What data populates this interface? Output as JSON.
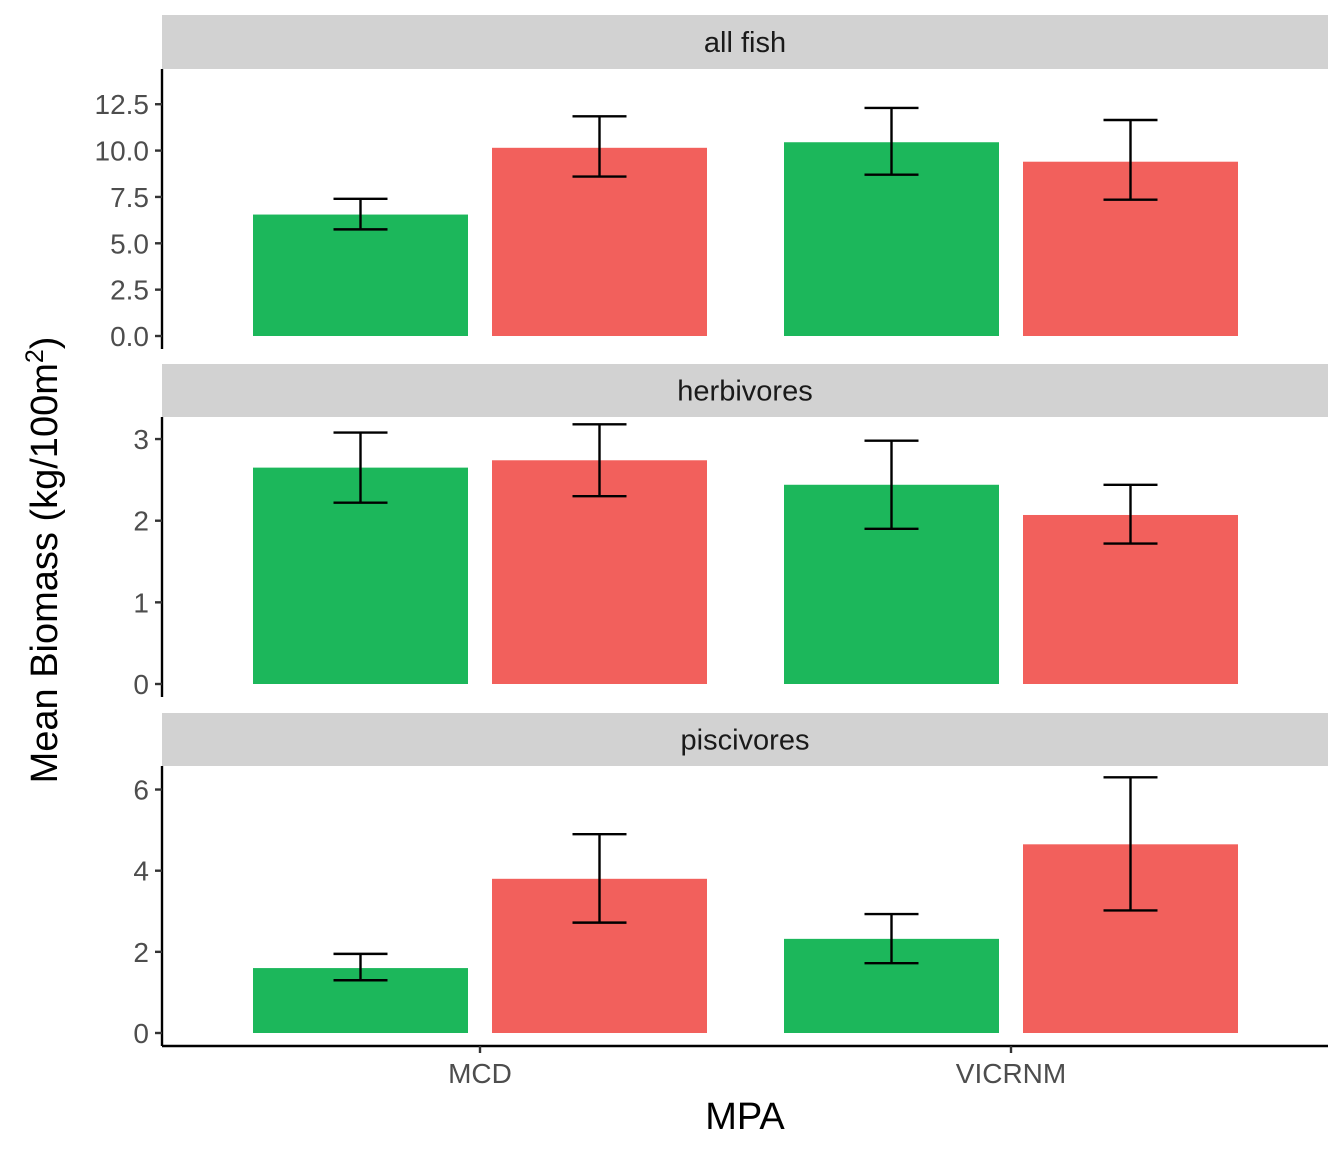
{
  "chart_data": {
    "type": "bar",
    "xlabel": "MPA",
    "ylabel": {
      "main": "Mean Biomass (kg/100m",
      "superscript": "2",
      "close": ")"
    },
    "categories": [
      "MCD",
      "VICRNM"
    ],
    "grid": false,
    "legend": "none",
    "colors": {
      "green": "#1cb75b",
      "red": "#f2605c",
      "strip_background": "#d2d2d2",
      "axis": "#000000",
      "tick_text": "#4d4d4d"
    },
    "panels": [
      {
        "title": "all fish",
        "ylim": [
          0,
          14.4
        ],
        "yticks": [
          "0.0",
          "2.5",
          "5.0",
          "7.5",
          "10.0",
          "12.5"
        ],
        "ytick_values": [
          0,
          2.5,
          5,
          7.5,
          10,
          12.5
        ],
        "groups": [
          {
            "category": "MCD",
            "bars": [
              {
                "color": "green",
                "value": 6.55,
                "lower": 5.75,
                "upper": 7.4
              },
              {
                "color": "red",
                "value": 10.15,
                "lower": 8.6,
                "upper": 11.85
              }
            ]
          },
          {
            "category": "VICRNM",
            "bars": [
              {
                "color": "green",
                "value": 10.45,
                "lower": 8.7,
                "upper": 12.3
              },
              {
                "color": "red",
                "value": 9.4,
                "lower": 7.35,
                "upper": 11.65
              }
            ]
          }
        ]
      },
      {
        "title": "herbivores",
        "ylim": [
          0,
          3.27
        ],
        "yticks": [
          "0",
          "1",
          "2",
          "3"
        ],
        "ytick_values": [
          0,
          1,
          2,
          3
        ],
        "groups": [
          {
            "category": "MCD",
            "bars": [
              {
                "color": "green",
                "value": 2.65,
                "lower": 2.22,
                "upper": 3.08
              },
              {
                "color": "red",
                "value": 2.74,
                "lower": 2.3,
                "upper": 3.18
              }
            ]
          },
          {
            "category": "VICRNM",
            "bars": [
              {
                "color": "green",
                "value": 2.44,
                "lower": 1.9,
                "upper": 2.98
              },
              {
                "color": "red",
                "value": 2.07,
                "lower": 1.72,
                "upper": 2.44
              }
            ]
          }
        ]
      },
      {
        "title": "piscivores",
        "ylim": [
          0,
          6.58
        ],
        "yticks": [
          "0",
          "2",
          "4",
          "6"
        ],
        "ytick_values": [
          0,
          2,
          4,
          6
        ],
        "groups": [
          {
            "category": "MCD",
            "bars": [
              {
                "color": "green",
                "value": 1.6,
                "lower": 1.3,
                "upper": 1.95
              },
              {
                "color": "red",
                "value": 3.8,
                "lower": 2.72,
                "upper": 4.9
              }
            ]
          },
          {
            "category": "VICRNM",
            "bars": [
              {
                "color": "green",
                "value": 2.32,
                "lower": 1.72,
                "upper": 2.93
              },
              {
                "color": "red",
                "value": 4.65,
                "lower": 3.02,
                "upper": 6.3
              }
            ]
          }
        ]
      }
    ]
  }
}
